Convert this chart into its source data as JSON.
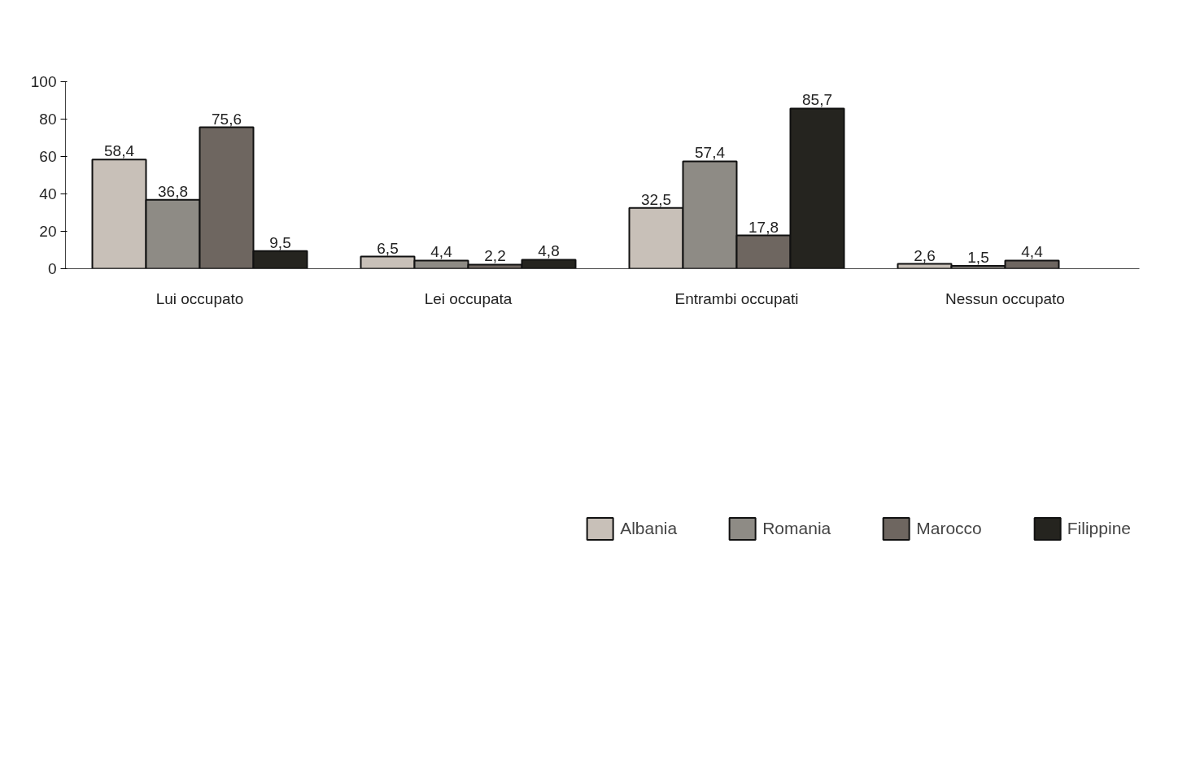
{
  "chart_data": {
    "type": "bar",
    "categories": [
      "Lui occupato",
      "Lei occupata",
      "Entrambi occupati",
      "Nessun occupato"
    ],
    "series": [
      {
        "name": "Albania",
        "color": "#c8c0b8",
        "values": [
          58.4,
          6.5,
          32.5,
          2.6
        ],
        "value_labels": [
          "58,4",
          "6,5",
          "32,5",
          "2,6"
        ]
      },
      {
        "name": "Romania",
        "color": "#8e8b85",
        "values": [
          36.8,
          4.4,
          57.4,
          1.5
        ],
        "value_labels": [
          "36,8",
          "4,4",
          "57,4",
          "1,5"
        ]
      },
      {
        "name": "Marocco",
        "color": "#6e6660",
        "values": [
          75.6,
          2.2,
          17.8,
          4.4
        ],
        "value_labels": [
          "75,6",
          "2,2",
          "17,8",
          "4,4"
        ]
      },
      {
        "name": "Filippine",
        "color": "#25241f",
        "values": [
          9.5,
          4.8,
          85.7,
          null
        ],
        "value_labels": [
          "9,5",
          "4,8",
          "85,7",
          null
        ]
      }
    ],
    "ylim": [
      0,
      100
    ],
    "yticks": [
      0,
      20,
      40,
      60,
      80,
      100
    ],
    "grid": false,
    "legend": "bottom"
  }
}
